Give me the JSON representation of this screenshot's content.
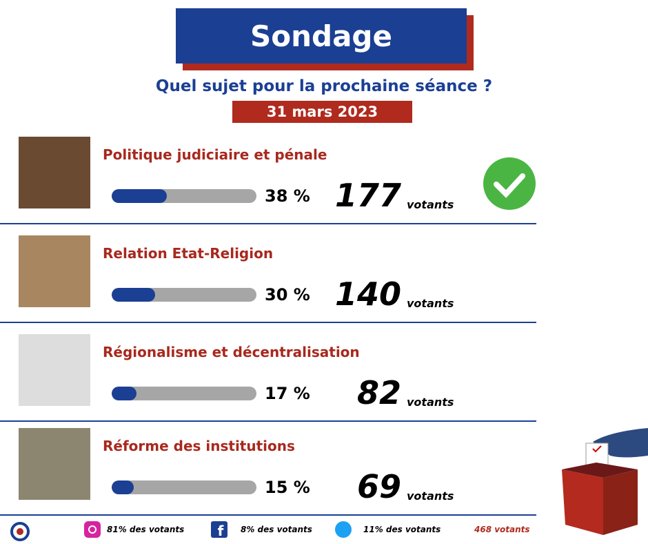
{
  "header": {
    "title": "Sondage",
    "question": "Quel sujet pour la prochaine séance ?",
    "date": "31 mars 2023"
  },
  "options": [
    {
      "label": "Politique judiciaire et pénale",
      "percent": 38,
      "percent_label": "38 %",
      "votes": 177,
      "votes_unit": "votants"
    },
    {
      "label": "Relation Etat-Religion",
      "percent": 30,
      "percent_label": "30 %",
      "votes": 140,
      "votes_unit": "votants"
    },
    {
      "label": "Régionalisme et décentralisation",
      "percent": 17,
      "percent_label": "17 %",
      "votes": 82,
      "votes_unit": "votants"
    },
    {
      "label": "Réforme des institutions",
      "percent": 15,
      "percent_label": "15 %",
      "votes": 69,
      "votes_unit": "votants"
    }
  ],
  "footer": {
    "instagram": "81% des votants",
    "facebook": "8% des votants",
    "twitter": "11% des votants",
    "total": "468 votants"
  }
}
